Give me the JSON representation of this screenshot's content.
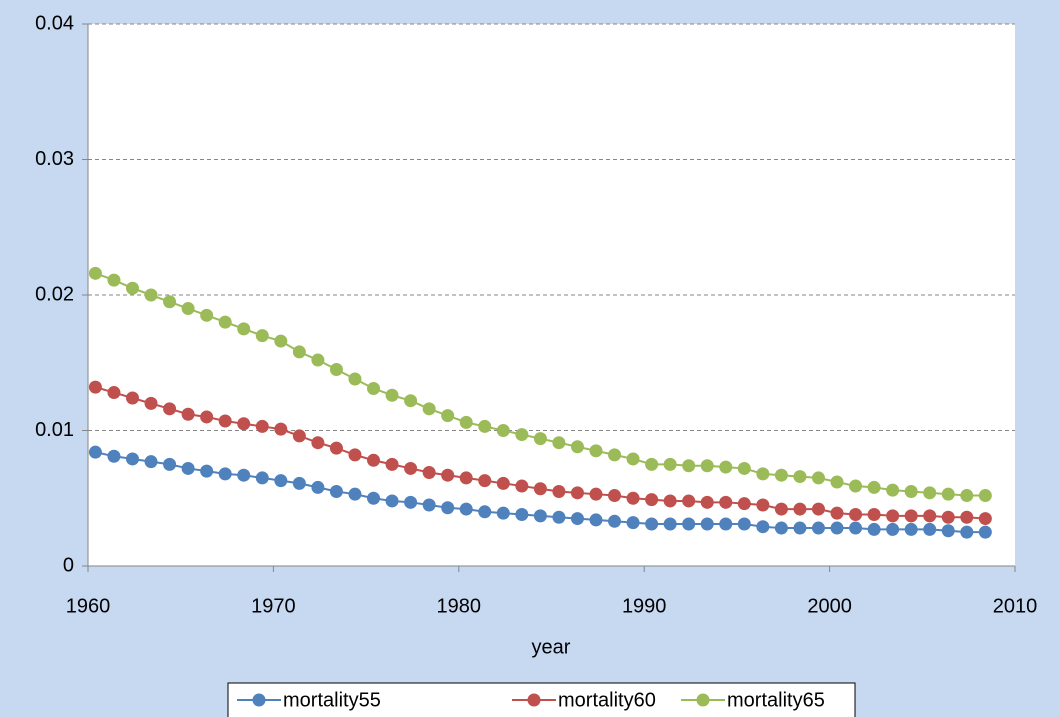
{
  "chart_data": {
    "type": "line",
    "x_label": "year",
    "x": [
      1960.4,
      1961.4,
      1962.4,
      1963.4,
      1964.4,
      1965.4,
      1966.4,
      1967.4,
      1968.4,
      1969.4,
      1970.4,
      1971.4,
      1972.4,
      1973.4,
      1974.4,
      1975.4,
      1976.4,
      1977.4,
      1978.4,
      1979.4,
      1980.4,
      1981.4,
      1982.4,
      1983.4,
      1984.4,
      1985.4,
      1986.4,
      1987.4,
      1988.4,
      1989.4,
      1990.4,
      1991.4,
      1992.4,
      1993.4,
      1994.4,
      1995.4,
      1996.4,
      1997.4,
      1998.4,
      1999.4,
      2000.4,
      2001.4,
      2002.4,
      2003.4,
      2004.4,
      2005.4,
      2006.4,
      2007.4,
      2008.4
    ],
    "series": [
      {
        "name": "mortality55",
        "color": "#4f81bd",
        "values": [
          0.0084,
          0.0081,
          0.0079,
          0.0077,
          0.0075,
          0.0072,
          0.007,
          0.0068,
          0.0067,
          0.0065,
          0.0063,
          0.0061,
          0.0058,
          0.0055,
          0.0053,
          0.005,
          0.0048,
          0.0047,
          0.0045,
          0.0043,
          0.0042,
          0.004,
          0.0039,
          0.0038,
          0.0037,
          0.0036,
          0.0035,
          0.0034,
          0.0033,
          0.0032,
          0.0031,
          0.0031,
          0.0031,
          0.0031,
          0.0031,
          0.0031,
          0.0029,
          0.0028,
          0.0028,
          0.0028,
          0.0028,
          0.0028,
          0.0027,
          0.0027,
          0.0027,
          0.0027,
          0.0026,
          0.0025,
          0.0025
        ]
      },
      {
        "name": "mortality60",
        "color": "#c0504d",
        "values": [
          0.0132,
          0.0128,
          0.0124,
          0.012,
          0.0116,
          0.0112,
          0.011,
          0.0107,
          0.0105,
          0.0103,
          0.0101,
          0.0096,
          0.0091,
          0.0087,
          0.0082,
          0.0078,
          0.0075,
          0.0072,
          0.0069,
          0.0067,
          0.0065,
          0.0063,
          0.0061,
          0.0059,
          0.0057,
          0.0055,
          0.0054,
          0.0053,
          0.0052,
          0.005,
          0.0049,
          0.0048,
          0.0048,
          0.0047,
          0.0047,
          0.0046,
          0.0045,
          0.0042,
          0.0042,
          0.0042,
          0.0039,
          0.0038,
          0.0038,
          0.0037,
          0.0037,
          0.0037,
          0.0036,
          0.0036,
          0.0035
        ]
      },
      {
        "name": "mortality65",
        "color": "#9bbb59",
        "values": [
          0.0216,
          0.0211,
          0.0205,
          0.02,
          0.0195,
          0.019,
          0.0185,
          0.018,
          0.0175,
          0.017,
          0.0166,
          0.0158,
          0.0152,
          0.0145,
          0.0138,
          0.0131,
          0.0126,
          0.0122,
          0.0116,
          0.0111,
          0.0106,
          0.0103,
          0.01,
          0.0097,
          0.0094,
          0.0091,
          0.0088,
          0.0085,
          0.0082,
          0.0079,
          0.0075,
          0.0075,
          0.0074,
          0.0074,
          0.0073,
          0.0072,
          0.0068,
          0.0067,
          0.0066,
          0.0065,
          0.0062,
          0.0059,
          0.0058,
          0.0056,
          0.0055,
          0.0054,
          0.0053,
          0.0052,
          0.0052
        ]
      }
    ],
    "xlim": [
      1960,
      2010
    ],
    "xticks": [
      1960,
      1970,
      1980,
      1990,
      2000,
      2010
    ],
    "ylim": [
      0,
      0.04
    ],
    "yticks": [
      0,
      0.01,
      0.02,
      0.03,
      0.04
    ],
    "grid": true,
    "legend": "bottom"
  }
}
